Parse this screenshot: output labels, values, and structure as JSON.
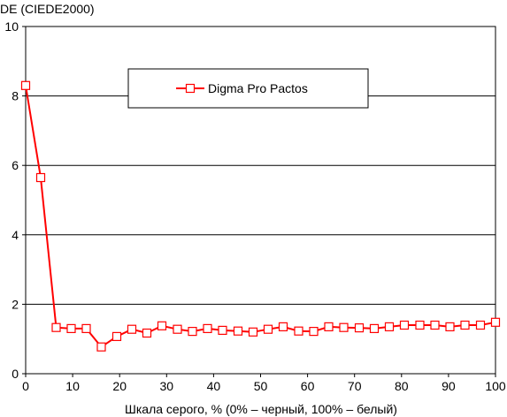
{
  "chart_data": {
    "type": "line",
    "ylabel": "DE (CIEDE2000)",
    "xlabel": "Шкала серого, % (0% – черный, 100% – белый)",
    "xlim": [
      0,
      100
    ],
    "ylim": [
      0,
      10
    ],
    "x_ticks": [
      0,
      10,
      20,
      30,
      40,
      50,
      60,
      70,
      80,
      90,
      100
    ],
    "y_ticks": [
      0,
      2,
      4,
      6,
      8,
      10
    ],
    "grid": "horizontal",
    "legend_position": "top-center",
    "series": [
      {
        "name": "Digma Pro Pactos",
        "color": "#ff0000",
        "marker": "square-open",
        "x": [
          0,
          3.2,
          6.5,
          9.7,
          12.9,
          16.1,
          19.4,
          22.6,
          25.8,
          29.0,
          32.3,
          35.5,
          38.7,
          41.9,
          45.2,
          48.4,
          51.6,
          54.8,
          58.1,
          61.3,
          64.5,
          67.7,
          71.0,
          74.2,
          77.4,
          80.6,
          83.9,
          87.1,
          90.3,
          93.5,
          96.8,
          100
        ],
        "values": [
          8.3,
          5.65,
          1.33,
          1.3,
          1.3,
          0.77,
          1.07,
          1.28,
          1.17,
          1.38,
          1.28,
          1.22,
          1.3,
          1.25,
          1.23,
          1.2,
          1.28,
          1.35,
          1.23,
          1.22,
          1.35,
          1.33,
          1.32,
          1.3,
          1.35,
          1.4,
          1.4,
          1.4,
          1.35,
          1.4,
          1.4,
          1.48
        ]
      }
    ]
  }
}
